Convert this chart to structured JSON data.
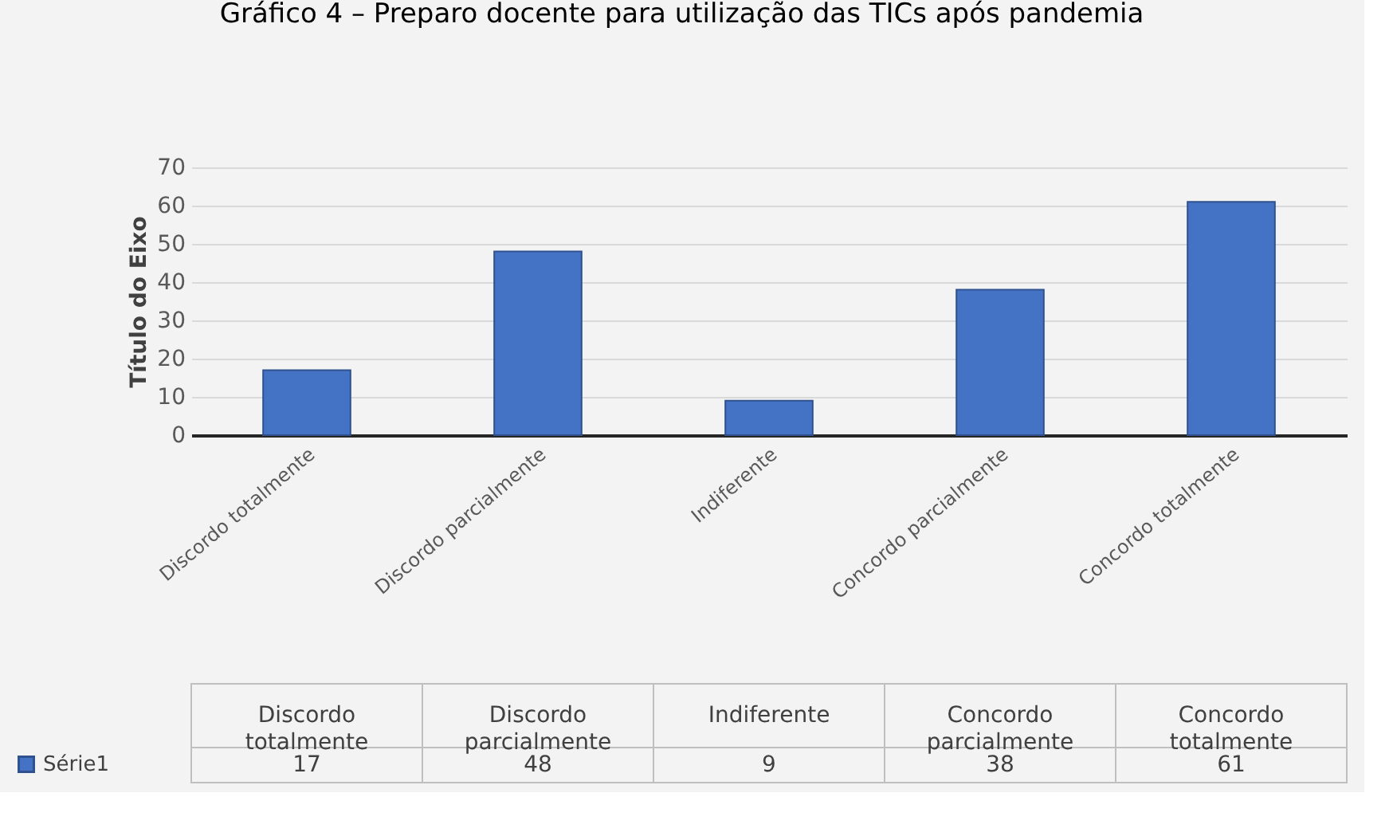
{
  "chart_data": {
    "type": "bar",
    "title": "Gráfico 4 – Preparo docente para utilização das TICs após pandemia",
    "ylabel": "Título do Eixo",
    "categories": [
      "Discordo totalmente",
      "Discordo parcialmente",
      "Indiferente",
      "Concordo parcialmente",
      "Concordo totalmente"
    ],
    "series": [
      {
        "name": "Série1",
        "color": "#4472c4",
        "values": [
          17,
          48,
          9,
          38,
          61
        ]
      }
    ],
    "ylim": [
      0,
      70
    ],
    "yticks": [
      0,
      10,
      20,
      30,
      40,
      50,
      60,
      70
    ],
    "grid": "y",
    "data_labels": true,
    "legend": "bottom left"
  }
}
